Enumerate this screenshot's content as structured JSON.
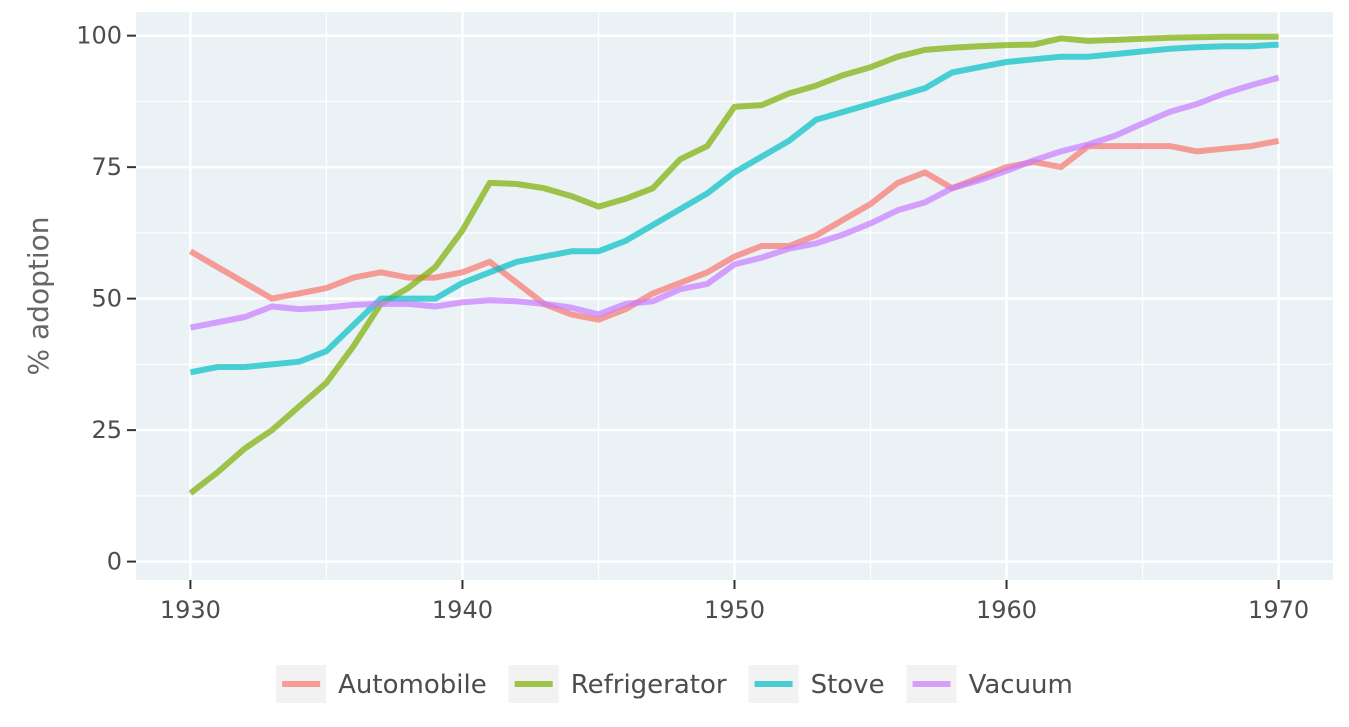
{
  "chart_data": {
    "type": "line",
    "title": "",
    "xlabel": "",
    "ylabel": "% adoption",
    "xlim": [
      1928,
      1972
    ],
    "ylim": [
      -3.5,
      104.5
    ],
    "x_ticks": [
      1930,
      1940,
      1950,
      1960,
      1970
    ],
    "y_ticks": [
      0,
      25,
      50,
      75,
      100
    ],
    "y_minor_ticks": [
      12.5,
      37.5,
      62.5,
      87.5
    ],
    "x_minor_ticks": [
      1935,
      1945,
      1955,
      1965
    ],
    "grid": true,
    "panel_background": "#EAF2F6",
    "grid_color": "#ffffff",
    "legend_position": "bottom",
    "series": [
      {
        "name": "Automobile",
        "color": "#F8766D",
        "points": [
          [
            1930,
            59
          ],
          [
            1931,
            56
          ],
          [
            1932,
            53
          ],
          [
            1933,
            50
          ],
          [
            1934,
            51
          ],
          [
            1935,
            52
          ],
          [
            1936,
            54
          ],
          [
            1937,
            55
          ],
          [
            1938,
            54
          ],
          [
            1939,
            54
          ],
          [
            1940,
            55
          ],
          [
            1941,
            57
          ],
          [
            1942,
            53
          ],
          [
            1943,
            49
          ],
          [
            1944,
            47
          ],
          [
            1945,
            46
          ],
          [
            1946,
            48
          ],
          [
            1947,
            51
          ],
          [
            1948,
            53
          ],
          [
            1949,
            55
          ],
          [
            1950,
            58
          ],
          [
            1951,
            60
          ],
          [
            1952,
            60
          ],
          [
            1953,
            62
          ],
          [
            1954,
            65
          ],
          [
            1955,
            68
          ],
          [
            1956,
            72
          ],
          [
            1957,
            74
          ],
          [
            1958,
            71
          ],
          [
            1959,
            73
          ],
          [
            1960,
            75
          ],
          [
            1961,
            76
          ],
          [
            1962,
            75
          ],
          [
            1963,
            79
          ],
          [
            1964,
            79
          ],
          [
            1965,
            79
          ],
          [
            1966,
            79
          ],
          [
            1967,
            78
          ],
          [
            1968,
            78.5
          ],
          [
            1969,
            79
          ],
          [
            1970,
            80
          ]
        ]
      },
      {
        "name": "Refrigerator",
        "color": "#7CAE00",
        "points": [
          [
            1930,
            13
          ],
          [
            1931,
            17
          ],
          [
            1932,
            21.5
          ],
          [
            1933,
            25
          ],
          [
            1934,
            29.5
          ],
          [
            1935,
            34
          ],
          [
            1936,
            41
          ],
          [
            1937,
            49
          ],
          [
            1938,
            52
          ],
          [
            1939,
            56
          ],
          [
            1940,
            63
          ],
          [
            1941,
            72
          ],
          [
            1942,
            71.8
          ],
          [
            1943,
            71
          ],
          [
            1944,
            69.5
          ],
          [
            1945,
            67.5
          ],
          [
            1946,
            69
          ],
          [
            1947,
            71
          ],
          [
            1948,
            76.5
          ],
          [
            1949,
            79
          ],
          [
            1950,
            86.5
          ],
          [
            1951,
            86.8
          ],
          [
            1952,
            89
          ],
          [
            1953,
            90.5
          ],
          [
            1954,
            92.5
          ],
          [
            1955,
            94
          ],
          [
            1956,
            96
          ],
          [
            1957,
            97.3
          ],
          [
            1958,
            97.7
          ],
          [
            1959,
            98
          ],
          [
            1960,
            98.2
          ],
          [
            1961,
            98.3
          ],
          [
            1962,
            99.5
          ],
          [
            1963,
            99
          ],
          [
            1964,
            99.2
          ],
          [
            1965,
            99.4
          ],
          [
            1966,
            99.6
          ],
          [
            1967,
            99.7
          ],
          [
            1968,
            99.8
          ],
          [
            1969,
            99.8
          ],
          [
            1970,
            99.8
          ]
        ]
      },
      {
        "name": "Stove",
        "color": "#00BFC4",
        "points": [
          [
            1930,
            36
          ],
          [
            1931,
            37
          ],
          [
            1932,
            37
          ],
          [
            1933,
            37.5
          ],
          [
            1934,
            38
          ],
          [
            1935,
            40
          ],
          [
            1936,
            45
          ],
          [
            1937,
            50
          ],
          [
            1938,
            50
          ],
          [
            1939,
            50
          ],
          [
            1940,
            53
          ],
          [
            1941,
            55
          ],
          [
            1942,
            57
          ],
          [
            1943,
            58
          ],
          [
            1944,
            59
          ],
          [
            1945,
            59
          ],
          [
            1946,
            61
          ],
          [
            1947,
            64
          ],
          [
            1948,
            67
          ],
          [
            1949,
            70
          ],
          [
            1950,
            74
          ],
          [
            1951,
            77
          ],
          [
            1952,
            80
          ],
          [
            1953,
            84
          ],
          [
            1954,
            85.5
          ],
          [
            1955,
            87
          ],
          [
            1956,
            88.5
          ],
          [
            1957,
            90
          ],
          [
            1958,
            93
          ],
          [
            1959,
            94
          ],
          [
            1960,
            95
          ],
          [
            1961,
            95.5
          ],
          [
            1962,
            96
          ],
          [
            1963,
            96
          ],
          [
            1964,
            96.5
          ],
          [
            1965,
            97
          ],
          [
            1966,
            97.5
          ],
          [
            1967,
            97.8
          ],
          [
            1968,
            98
          ],
          [
            1969,
            98
          ],
          [
            1970,
            98.3
          ]
        ]
      },
      {
        "name": "Vacuum",
        "color": "#C77CFF",
        "points": [
          [
            1930,
            44.5
          ],
          [
            1931,
            45.5
          ],
          [
            1932,
            46.5
          ],
          [
            1933,
            48.5
          ],
          [
            1934,
            48
          ],
          [
            1935,
            48.3
          ],
          [
            1936,
            48.8
          ],
          [
            1937,
            49
          ],
          [
            1938,
            49
          ],
          [
            1939,
            48.5
          ],
          [
            1940,
            49.3
          ],
          [
            1941,
            49.7
          ],
          [
            1942,
            49.5
          ],
          [
            1943,
            49
          ],
          [
            1944,
            48.3
          ],
          [
            1945,
            47
          ],
          [
            1946,
            49
          ],
          [
            1947,
            49.5
          ],
          [
            1948,
            51.8
          ],
          [
            1949,
            52.8
          ],
          [
            1950,
            56.5
          ],
          [
            1951,
            57.8
          ],
          [
            1952,
            59.5
          ],
          [
            1953,
            60.5
          ],
          [
            1954,
            62.2
          ],
          [
            1955,
            64.3
          ],
          [
            1956,
            66.8
          ],
          [
            1957,
            68.3
          ],
          [
            1958,
            71
          ],
          [
            1959,
            72.5
          ],
          [
            1960,
            74.3
          ],
          [
            1961,
            76.3
          ],
          [
            1962,
            78
          ],
          [
            1963,
            79.3
          ],
          [
            1964,
            81
          ],
          [
            1965,
            83.3
          ],
          [
            1966,
            85.5
          ],
          [
            1967,
            87
          ],
          [
            1968,
            89
          ],
          [
            1969,
            90.6
          ],
          [
            1970,
            92
          ]
        ]
      }
    ]
  }
}
